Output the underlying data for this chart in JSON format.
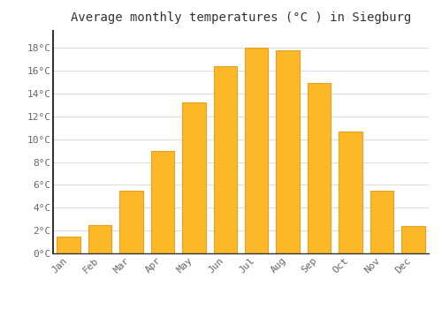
{
  "months": [
    "Jan",
    "Feb",
    "Mar",
    "Apr",
    "May",
    "Jun",
    "Jul",
    "Aug",
    "Sep",
    "Oct",
    "Nov",
    "Dec"
  ],
  "temperatures": [
    1.5,
    2.5,
    5.5,
    9.0,
    13.2,
    16.4,
    18.0,
    17.8,
    14.9,
    10.7,
    5.5,
    2.4
  ],
  "bar_color": "#FDB827",
  "bar_edge_color": "#E8A020",
  "background_color": "#FFFFFF",
  "grid_color": "#DDDDDD",
  "title": "Average monthly temperatures (°C ) in Siegburg",
  "title_fontsize": 10,
  "tick_label_color": "#666666",
  "ylim": [
    0,
    19.5
  ],
  "yticks": [
    0,
    2,
    4,
    6,
    8,
    10,
    12,
    14,
    16,
    18
  ],
  "ytick_labels": [
    "0°C",
    "2°C",
    "4°C",
    "6°C",
    "8°C",
    "10°C",
    "12°C",
    "14°C",
    "16°C",
    "18°C"
  ]
}
